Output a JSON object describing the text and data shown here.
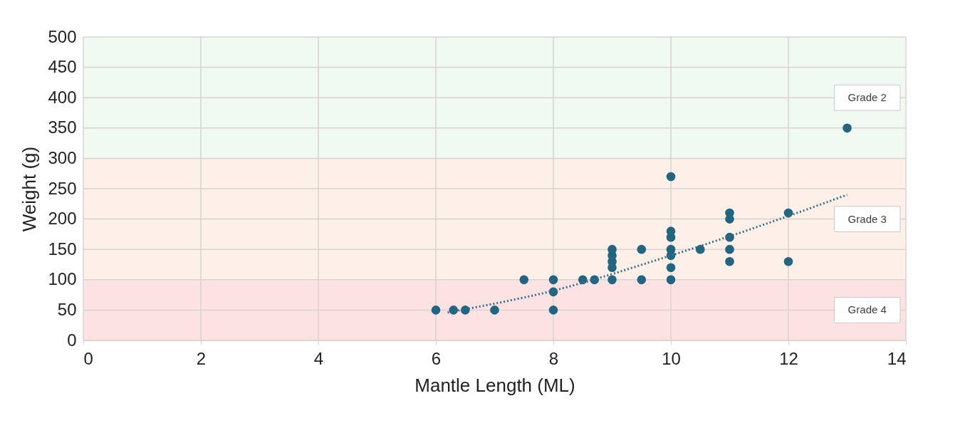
{
  "chart_data": {
    "type": "scatter",
    "xlabel": "Mantle Length (ML)",
    "ylabel": "Weight (g)",
    "xlim": [
      0,
      14
    ],
    "xticks": [
      0,
      2,
      4,
      6,
      8,
      10,
      12,
      14
    ],
    "ylim": [
      0,
      500
    ],
    "yticks": [
      0,
      50,
      100,
      150,
      200,
      250,
      300,
      350,
      400,
      450,
      500
    ],
    "grid": true,
    "marker": "circle",
    "series": [
      {
        "color": "#236480",
        "x": [
          6,
          6.3,
          6.5,
          7,
          7.5,
          8,
          8,
          8,
          8.5,
          8.7,
          9,
          9,
          9,
          9,
          9,
          9.5,
          9.5,
          10,
          10,
          10,
          10,
          10,
          10,
          10,
          10.5,
          11,
          11,
          11,
          11,
          11,
          12,
          12,
          13
        ],
        "values": [
          50,
          50,
          50,
          50,
          100,
          100,
          80,
          50,
          100,
          100,
          100,
          120,
          130,
          140,
          150,
          150,
          100,
          100,
          120,
          140,
          150,
          170,
          180,
          270,
          150,
          130,
          150,
          170,
          200,
          210,
          210,
          130,
          350
        ]
      },
      {
        "type": "line",
        "line_style": "dotted",
        "marker": "none",
        "color": "#3a6e88",
        "x": [
          6.2,
          8,
          10,
          12,
          13
        ],
        "values": [
          46,
          82,
          140,
          205,
          240
        ]
      }
    ],
    "bands": [
      {
        "axis": "y",
        "from": 0,
        "to": 100,
        "label": "Grade 4",
        "color": "#fde2e4"
      },
      {
        "axis": "y",
        "from": 100,
        "to": 300,
        "label": "Grade 3",
        "color": "#fdf0e8"
      },
      {
        "axis": "y",
        "from": 300,
        "to": 500,
        "label": "Grade 2",
        "color": "#f0faf2"
      }
    ]
  }
}
